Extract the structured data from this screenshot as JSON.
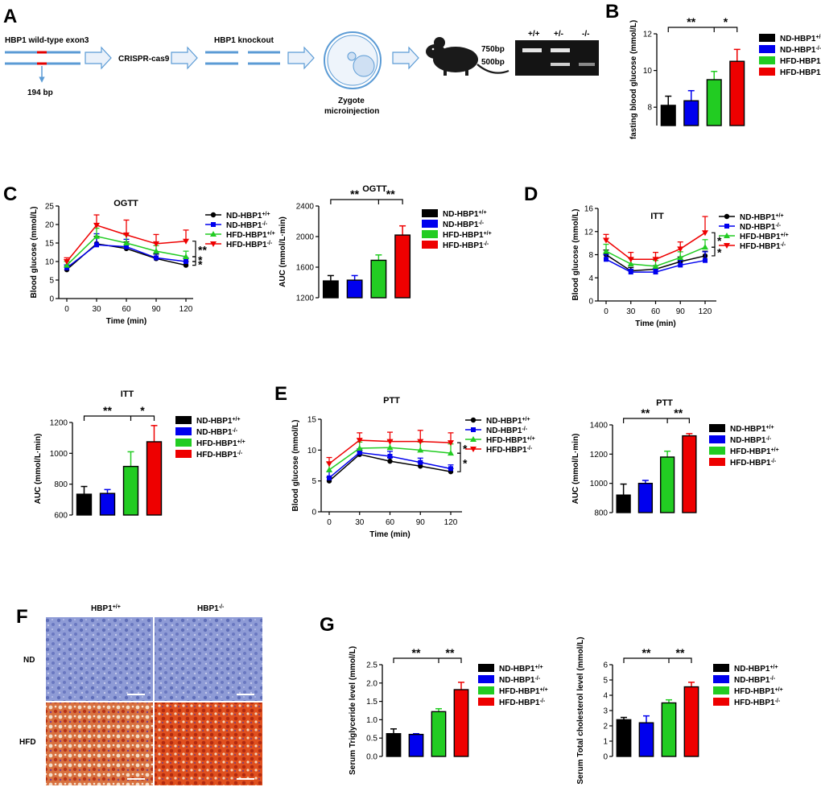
{
  "panels": {
    "A": "A",
    "B": "B",
    "C": "C",
    "D": "D",
    "E": "E",
    "F": "F",
    "G": "G"
  },
  "schematic": {
    "wildtype": "HBP1 wild-type exon3",
    "crispr": "CRISPR-cas9",
    "knockout": "HBP1 knockout",
    "deletion": "194 bp",
    "zygote1": "Zygote",
    "zygote2": "microinjection",
    "gel_lanes": [
      "+/+",
      "+/-",
      "-/-"
    ],
    "band_750": "750bp",
    "band_500": "500bp"
  },
  "histology": {
    "col_wt": "HBP1",
    "col_wt_sup": "+/+",
    "col_ko": "HBP1",
    "col_ko_sup": "-/-",
    "row_nd": "ND",
    "row_hfd": "HFD"
  },
  "colors": {
    "ND_wt": "#000000",
    "ND_ko": "#0000ee",
    "HFD_wt": "#22cc22",
    "HFD_ko": "#ee0000"
  },
  "groups": [
    {
      "base": "ND-HBP1",
      "sup": "+/+"
    },
    {
      "base": "ND-HBP1",
      "sup": "-/-"
    },
    {
      "base": "HFD-HBP1",
      "sup": "+/+"
    },
    {
      "base": "HFD-HBP1",
      "sup": "-/-"
    }
  ],
  "chart_data": [
    {
      "id": "B",
      "type": "bar",
      "title": "",
      "ylabel": "fasting blood glucose (mmol/L)",
      "xlabel": "",
      "ylim": [
        7,
        12
      ],
      "yticks": [
        8,
        10,
        12
      ],
      "values": [
        8.1,
        8.35,
        9.5,
        10.5
      ],
      "errors": [
        0.5,
        0.55,
        0.45,
        0.65
      ],
      "significance": [
        "**",
        "*"
      ]
    },
    {
      "id": "C-OGTT",
      "type": "line",
      "title": "OGTT",
      "ylabel": "Blood glucose (mmol/L)",
      "xlabel": "Time (min)",
      "x": [
        0,
        30,
        60,
        90,
        120
      ],
      "ylim": [
        0,
        25
      ],
      "yticks": [
        0,
        5,
        10,
        15,
        20,
        25
      ],
      "series": [
        {
          "name": "ND-HBP1+/+",
          "values": [
            7.8,
            14.8,
            13.5,
            10.8,
            9.0
          ],
          "errors": [
            0.8,
            2.0,
            1.8,
            1.2,
            1.0
          ]
        },
        {
          "name": "ND-HBP1-/-",
          "values": [
            8.3,
            14.5,
            14.0,
            11.0,
            10.0
          ],
          "errors": [
            0.8,
            3.0,
            2.0,
            1.2,
            1.0
          ]
        },
        {
          "name": "HFD-HBP1+/+",
          "values": [
            9.0,
            16.8,
            15.0,
            12.8,
            11.3
          ],
          "errors": [
            1.0,
            2.2,
            2.2,
            1.5,
            1.5
          ]
        },
        {
          "name": "HFD-HBP1-/-",
          "values": [
            10.0,
            19.8,
            17.2,
            14.8,
            15.5
          ],
          "errors": [
            1.0,
            2.8,
            4.0,
            2.5,
            3.0
          ]
        }
      ],
      "significance": [
        "**",
        "*",
        "*"
      ]
    },
    {
      "id": "C-AUC",
      "type": "bar",
      "title": "OGTT",
      "ylabel": "AUC (mmol/L·min)",
      "xlabel": "",
      "ylim": [
        1200,
        2400
      ],
      "yticks": [
        1200,
        1600,
        2000,
        2400
      ],
      "values": [
        1420,
        1430,
        1690,
        2020
      ],
      "errors": [
        70,
        60,
        70,
        120
      ],
      "significance": [
        "**",
        "**"
      ]
    },
    {
      "id": "D-ITT",
      "type": "line",
      "title": "ITT",
      "ylabel": "Blood glucose (mmol/L)",
      "xlabel": "Time (min)",
      "x": [
        0,
        30,
        60,
        90,
        120
      ],
      "ylim": [
        0,
        16
      ],
      "yticks": [
        0,
        4,
        8,
        12,
        16
      ],
      "series": [
        {
          "name": "ND-HBP1+/+",
          "values": [
            8.0,
            5.2,
            5.5,
            6.8,
            7.8
          ],
          "errors": [
            0.8,
            0.6,
            0.6,
            0.8,
            0.8
          ]
        },
        {
          "name": "ND-HBP1-/-",
          "values": [
            7.2,
            5.0,
            5.0,
            6.2,
            7.0
          ],
          "errors": [
            0.8,
            0.5,
            0.5,
            0.8,
            1.5
          ]
        },
        {
          "name": "HFD-HBP1+/+",
          "values": [
            8.6,
            6.4,
            6.0,
            7.5,
            9.3
          ],
          "errors": [
            1.2,
            1.0,
            1.0,
            1.0,
            1.3
          ]
        },
        {
          "name": "HFD-HBP1-/-",
          "values": [
            10.5,
            7.2,
            7.2,
            9.0,
            11.8
          ],
          "errors": [
            1.0,
            1.2,
            1.2,
            1.2,
            2.8
          ]
        }
      ],
      "significance": [
        "*",
        "*"
      ]
    },
    {
      "id": "D-AUC",
      "type": "bar",
      "title": "ITT",
      "ylabel": "AUC (mmol/L·min)",
      "xlabel": "",
      "ylim": [
        600,
        1200
      ],
      "yticks": [
        600,
        800,
        1000,
        1200
      ],
      "values": [
        735,
        740,
        915,
        1075
      ],
      "errors": [
        50,
        25,
        95,
        105
      ],
      "significance": [
        "**",
        "*"
      ]
    },
    {
      "id": "E-PTT",
      "type": "line",
      "title": "PTT",
      "ylabel": "Blood glucose (mmol/L)",
      "xlabel": "Time (min)",
      "x": [
        0,
        30,
        60,
        90,
        120
      ],
      "ylim": [
        0,
        15
      ],
      "yticks": [
        0,
        5,
        10,
        15
      ],
      "series": [
        {
          "name": "ND-HBP1+/+",
          "values": [
            5.0,
            9.3,
            8.2,
            7.4,
            6.5
          ],
          "errors": [
            0.6,
            0.5,
            0.6,
            0.6,
            0.5
          ]
        },
        {
          "name": "ND-HBP1-/-",
          "values": [
            5.5,
            9.6,
            9.0,
            8.0,
            7.0
          ],
          "errors": [
            1.0,
            0.6,
            0.8,
            0.7,
            0.6
          ]
        },
        {
          "name": "HFD-HBP1+/+",
          "values": [
            6.8,
            10.3,
            10.4,
            10.0,
            9.5
          ],
          "errors": [
            1.2,
            1.0,
            1.2,
            1.3,
            1.5
          ]
        },
        {
          "name": "HFD-HBP1-/-",
          "values": [
            7.8,
            11.6,
            11.4,
            11.4,
            11.2
          ],
          "errors": [
            1.0,
            1.2,
            1.5,
            1.8,
            1.6
          ]
        }
      ],
      "significance": [
        "*",
        "*"
      ]
    },
    {
      "id": "E-AUC",
      "type": "bar",
      "title": "PTT",
      "ylabel": "AUC (mmol/L·min)",
      "xlabel": "",
      "ylim": [
        800,
        1400
      ],
      "yticks": [
        800,
        1000,
        1200,
        1400
      ],
      "values": [
        920,
        1000,
        1180,
        1325
      ],
      "errors": [
        75,
        20,
        40,
        15
      ],
      "significance": [
        "**",
        "**"
      ]
    },
    {
      "id": "G-TG",
      "type": "bar",
      "title": "",
      "ylabel": "Serum Triglyceride level (mmol/L)",
      "xlabel": "",
      "ylim": [
        0,
        2.5
      ],
      "yticks": [
        0.0,
        0.5,
        1.0,
        1.5,
        2.0,
        2.5
      ],
      "values": [
        0.62,
        0.6,
        1.22,
        1.82
      ],
      "errors": [
        0.13,
        0.02,
        0.08,
        0.2
      ],
      "significance": [
        "**",
        "**"
      ]
    },
    {
      "id": "G-TC",
      "type": "bar",
      "title": "",
      "ylabel": "Serum Total cholesterol level (mmol/L)",
      "xlabel": "",
      "ylim": [
        0,
        6
      ],
      "yticks": [
        0,
        1,
        2,
        3,
        4,
        5,
        6
      ],
      "values": [
        2.4,
        2.2,
        3.5,
        4.55
      ],
      "errors": [
        0.15,
        0.45,
        0.2,
        0.3
      ],
      "significance": [
        "**",
        "**"
      ]
    }
  ]
}
